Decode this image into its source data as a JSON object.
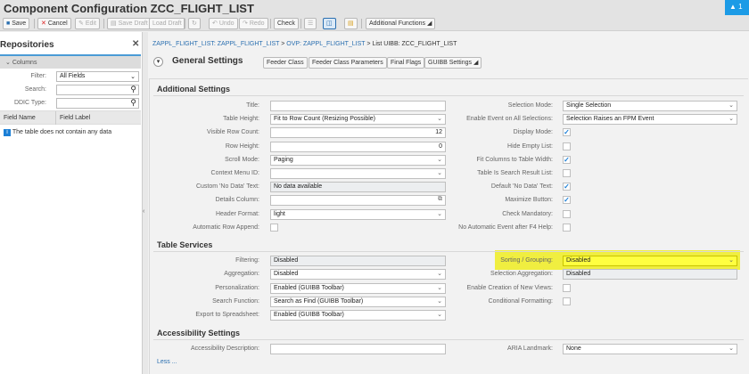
{
  "title": "Component Configuration ZCC_FLIGHT_LIST",
  "alert": {
    "icon": "warning-icon",
    "count": "1"
  },
  "toolbar": {
    "save": "Save",
    "cancel": "Cancel",
    "edit": "Edit",
    "save_draft": "Save Draft",
    "load_draft": "Load Draft",
    "undo": "Undo",
    "redo": "Redo",
    "check": "Check",
    "additional": "Additional Functions"
  },
  "repositories": {
    "title": "Repositories",
    "section": "Columns",
    "filter_label": "Filter:",
    "filter_value": "All Fields",
    "search_label": "Search:",
    "ddic_label": "DDIC Type:",
    "col_field_name": "Field Name",
    "col_field_label": "Field Label",
    "empty": "The table does not contain any data"
  },
  "breadcrumb": [
    "ZAPPL_FLIGHT_LIST: ZAPPL_FLIGHT_LIST",
    ">",
    "OVP: ZAPPL_FLIGHT_LIST",
    ">",
    "List UIBB: ZCC_FLIGHT_LIST"
  ],
  "general": {
    "title": "General Settings",
    "buttons": [
      "Feeder Class",
      "Feeder Class Parameters",
      "Final Flags",
      "GUIBB Settings"
    ]
  },
  "additional": {
    "title": "Additional Settings",
    "left": [
      {
        "label": "Title:",
        "value": "",
        "type": "text"
      },
      {
        "label": "Table Height:",
        "value": "Fit to Row Count (Resizing Possible)",
        "type": "select"
      },
      {
        "label": "Visible Row Count:",
        "value": "12",
        "type": "num"
      },
      {
        "label": "Row Height:",
        "value": "0",
        "type": "num"
      },
      {
        "label": "Scroll Mode:",
        "value": "Paging",
        "type": "select"
      },
      {
        "label": "Context Menu ID:",
        "value": "",
        "type": "select"
      },
      {
        "label": "Custom 'No Data' Text:",
        "value": "No data available",
        "type": "ro"
      },
      {
        "label": "Details Column:",
        "value": "",
        "type": "f4"
      },
      {
        "label": "Header Format:",
        "value": "light",
        "type": "select"
      },
      {
        "label": "Automatic Row Append:",
        "checked": false,
        "type": "cb"
      }
    ],
    "right": [
      {
        "label": "Selection Mode:",
        "value": "Single Selection",
        "type": "select"
      },
      {
        "label": "Enable Event on All Selections:",
        "value": "Selection Raises an FPM Event",
        "type": "select"
      },
      {
        "label": "Display Mode:",
        "checked": true,
        "type": "cb"
      },
      {
        "label": "Hide Empty List:",
        "checked": false,
        "type": "cb"
      },
      {
        "label": "Fit Columns to Table Width:",
        "checked": true,
        "type": "cb"
      },
      {
        "label": "Table Is Search Result List:",
        "checked": false,
        "type": "cb"
      },
      {
        "label": "Default 'No Data' Text:",
        "checked": true,
        "type": "cb"
      },
      {
        "label": "Maximize Button:",
        "checked": true,
        "type": "cb"
      },
      {
        "label": "Check Mandatory:",
        "checked": false,
        "type": "cb"
      },
      {
        "label": "No Automatic Event after F4 Help:",
        "checked": false,
        "type": "cb"
      }
    ]
  },
  "services": {
    "title": "Table Services",
    "left": [
      {
        "label": "Filtering:",
        "value": "Disabled",
        "type": "ro"
      },
      {
        "label": "Aggregation:",
        "value": "Disabled",
        "type": "select"
      },
      {
        "label": "Personalization:",
        "value": "Enabled (GUIBB Toolbar)",
        "type": "select"
      },
      {
        "label": "Search Function:",
        "value": "Search as Find (GUIBB Toolbar)",
        "type": "select"
      },
      {
        "label": "Export to Spreadsheet:",
        "value": "Enabled (GUIBB Toolbar)",
        "type": "select"
      }
    ],
    "right": [
      {
        "label": "Sorting / Grouping:",
        "value": "Disabled",
        "type": "select",
        "highlighted": true
      },
      {
        "label": "Selection Aggregation:",
        "value": "Disabled",
        "type": "ro"
      },
      {
        "label": "Enable Creation of New Views:",
        "checked": false,
        "type": "cb"
      },
      {
        "label": "Conditional Formatting:",
        "checked": false,
        "type": "cb"
      }
    ]
  },
  "accessibility": {
    "title": "Accessibility Settings",
    "left": [
      {
        "label": "Accessibility Description:",
        "value": "",
        "type": "text"
      }
    ],
    "right": [
      {
        "label": "ARIA Landmark:",
        "value": "None",
        "type": "select"
      }
    ]
  },
  "less": "Less ...",
  "colors": {
    "accent": "#1c9be6",
    "highlight": "#f0ee40",
    "link": "#2a6fb0"
  }
}
